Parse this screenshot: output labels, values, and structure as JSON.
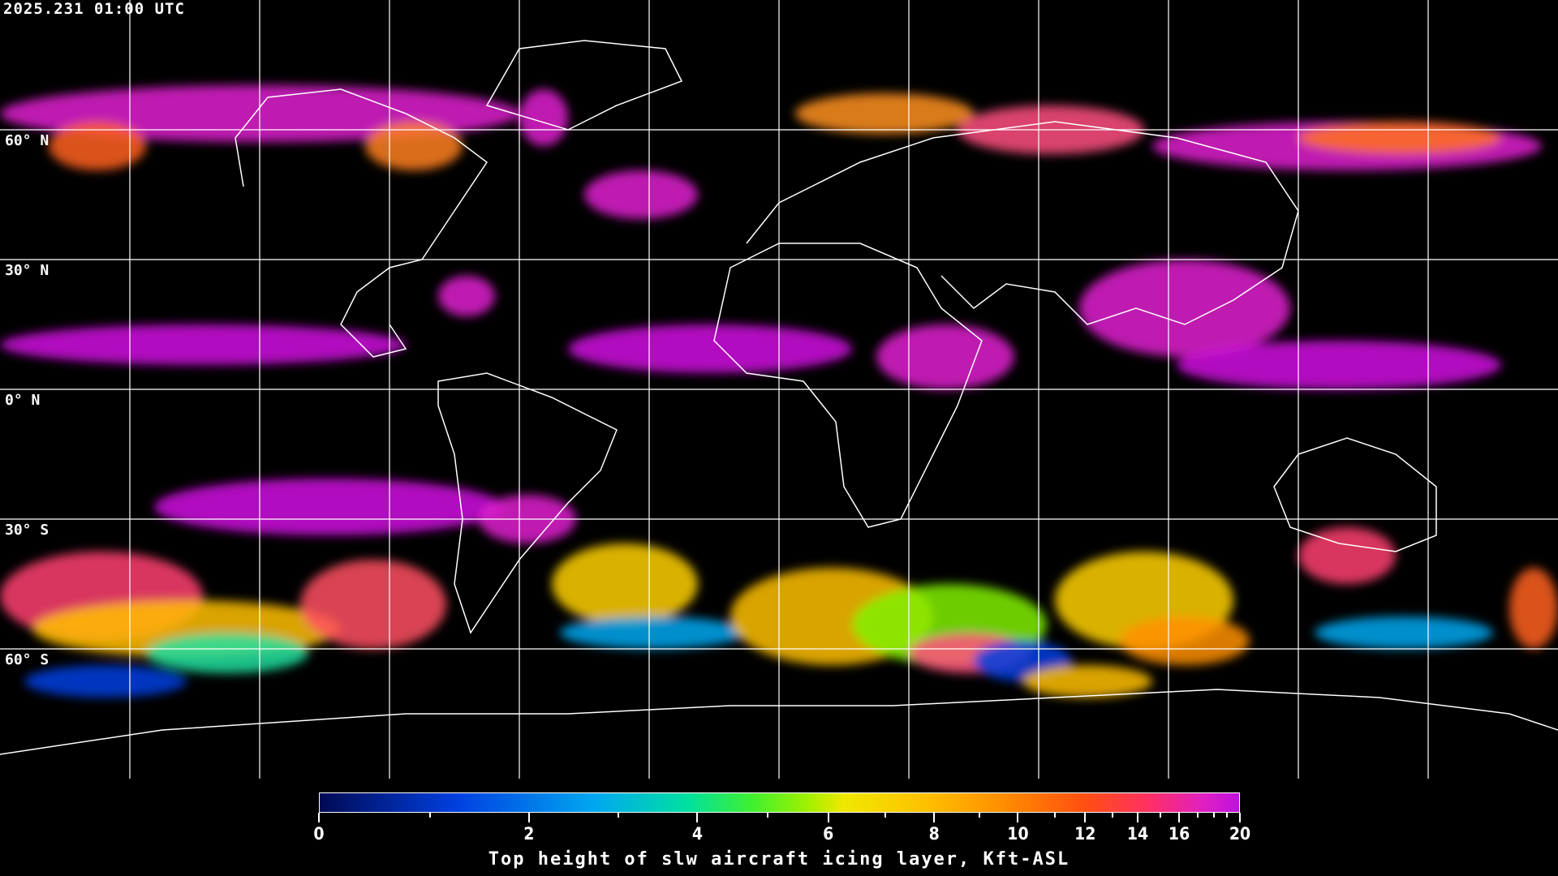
{
  "timestamp": "2025.231 01:00 UTC",
  "map": {
    "projection": "equirectangular",
    "background": "#000000",
    "coastline_color": "#ffffff",
    "gridline_color": "#ffffff",
    "lat_labels": [
      "60° N",
      "30° N",
      "0° N",
      "30° S",
      "60° S"
    ]
  },
  "colorbar": {
    "title": "Top height of slw aircraft icing layer, Kft-ASL",
    "tick_labels": [
      "0",
      "2",
      "4",
      "6",
      "8",
      "10",
      "12",
      "14",
      "16",
      "20"
    ],
    "range": [
      0,
      20
    ],
    "colormap": [
      "#000a55",
      "#0040e0",
      "#00a8f0",
      "#00e0a0",
      "#a0f000",
      "#f0e800",
      "#ffc000",
      "#ff9000",
      "#ff5010",
      "#ff3060",
      "#c010e0"
    ]
  }
}
